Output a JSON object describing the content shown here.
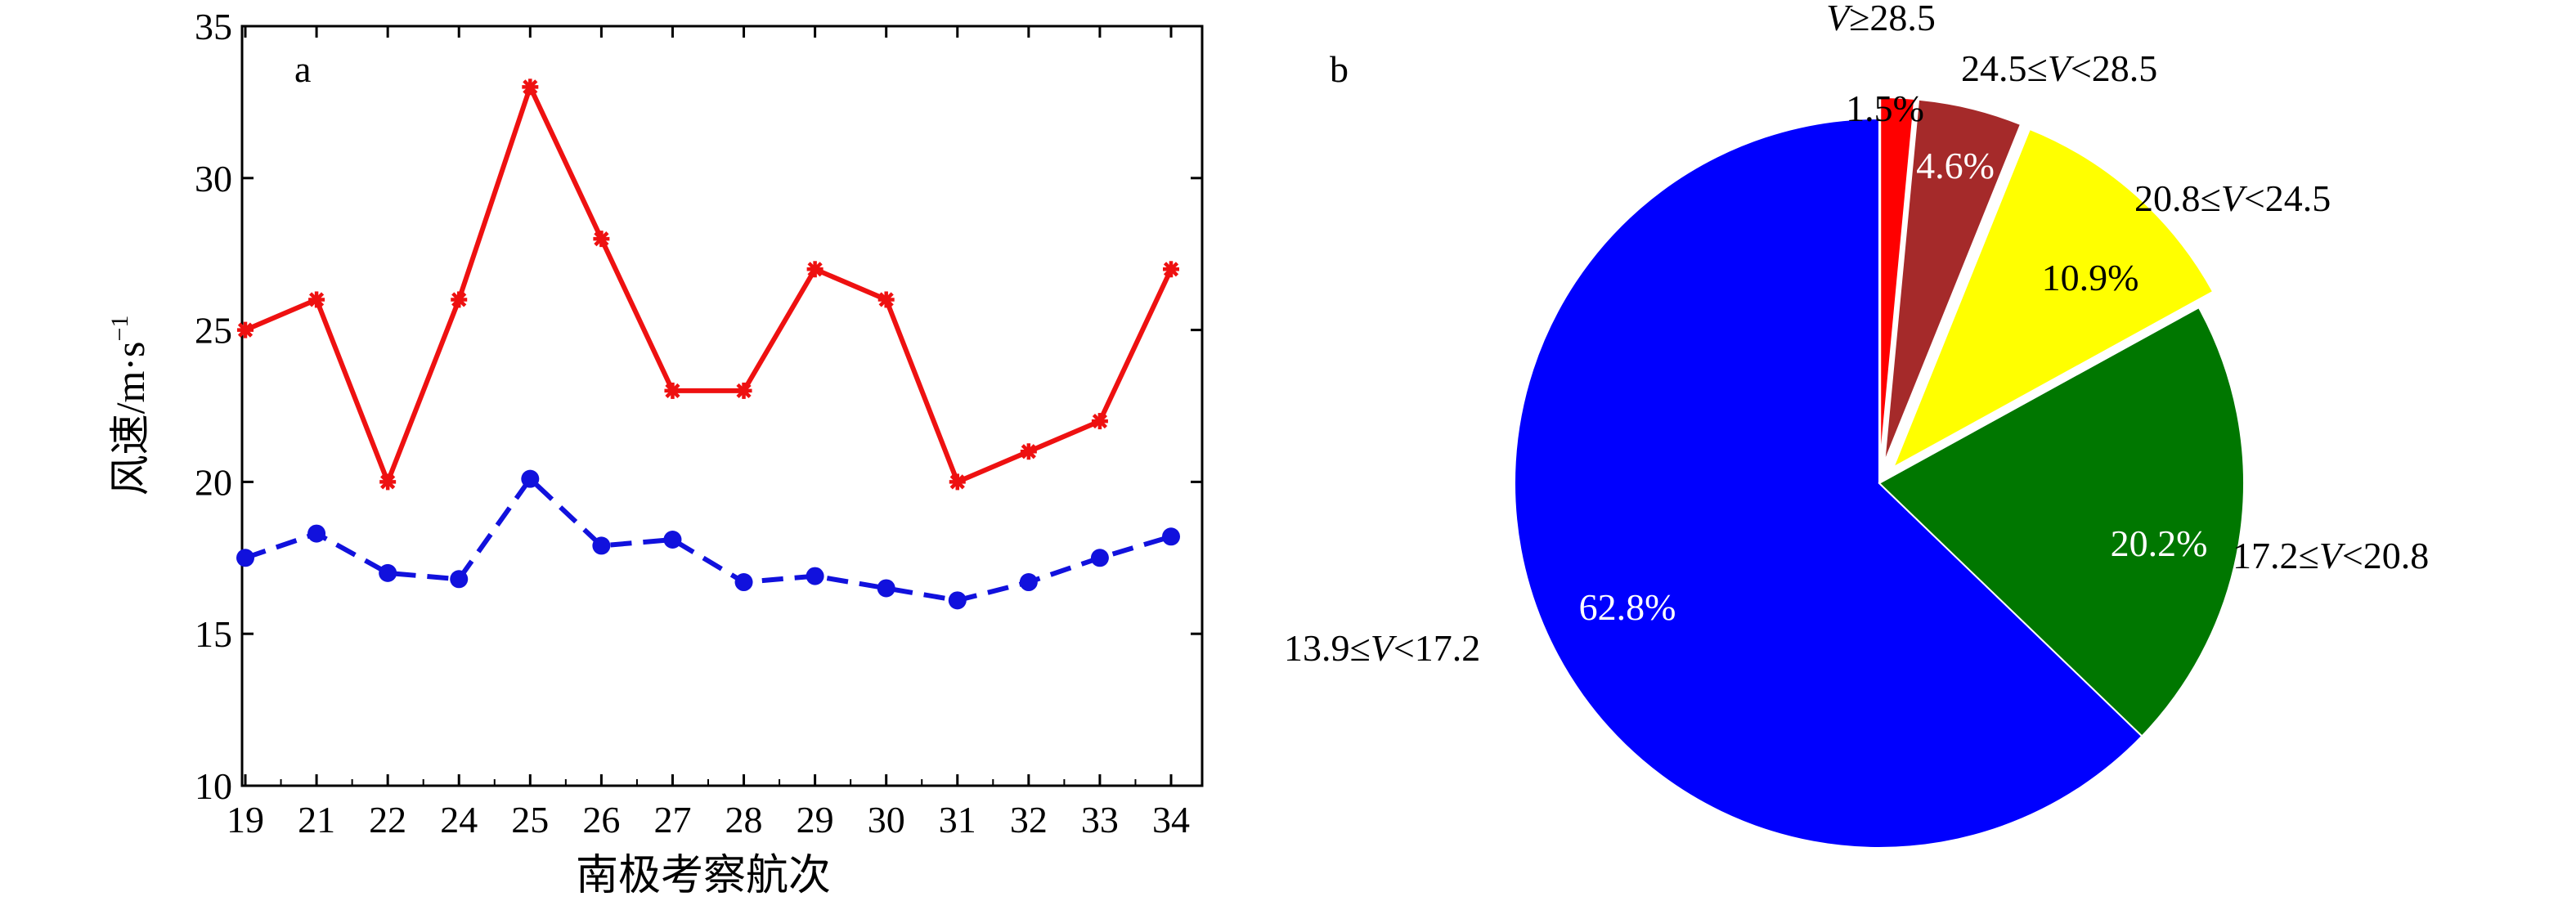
{
  "chart_data": [
    {
      "type": "line",
      "panel_label": "a",
      "xlabel": "南极考察航次",
      "ylabel": "风速/m·s",
      "ylabel_exponent": "−1",
      "categories": [
        "19",
        "21",
        "22",
        "24",
        "25",
        "26",
        "27",
        "28",
        "29",
        "30",
        "31",
        "32",
        "33",
        "34"
      ],
      "ylim": [
        10,
        35
      ],
      "yticks": [
        "10",
        "15",
        "20",
        "25",
        "30",
        "35"
      ],
      "grid": false,
      "series": [
        {
          "color": "#ee1111",
          "line_style": "solid",
          "marker": "asterisk",
          "values": [
            25,
            26,
            20,
            26,
            33,
            28,
            23,
            23,
            27,
            26,
            20,
            21,
            22,
            27
          ]
        },
        {
          "color": "#1111dd",
          "line_style": "dashed",
          "marker": "circle",
          "values": [
            17.5,
            18.3,
            17.0,
            16.8,
            20.1,
            17.9,
            18.1,
            16.7,
            16.9,
            16.5,
            16.1,
            16.7,
            17.5,
            18.2
          ]
        }
      ]
    },
    {
      "type": "pie",
      "panel_label": "b",
      "start": "12 o'clock, counter-clockwise",
      "slices": [
        {
          "pct_label": "62.8%",
          "value": 62.8,
          "range_prefix": "13.9≤",
          "range_var": "V",
          "range_suffix": "<17.2",
          "color": "#0000ff",
          "exploded": false
        },
        {
          "pct_label": "20.2%",
          "value": 20.2,
          "range_prefix": "17.2≤",
          "range_var": "V",
          "range_suffix": "<20.8",
          "color": "#007700",
          "exploded": false
        },
        {
          "pct_label": "10.9%",
          "value": 10.9,
          "range_prefix": "20.8≤",
          "range_var": "V",
          "range_suffix": "<24.5",
          "color": "#ffff00",
          "exploded": true
        },
        {
          "pct_label": "4.6%",
          "value": 4.6,
          "range_prefix": "24.5≤",
          "range_var": "V",
          "range_suffix": "<28.5",
          "color": "#a52a2a",
          "exploded": true
        },
        {
          "pct_label": "1.5%",
          "value": 1.5,
          "range_prefix": "",
          "range_var": "V",
          "range_suffix": "≥28.5",
          "color": "#ff0000",
          "exploded": true
        }
      ]
    }
  ]
}
